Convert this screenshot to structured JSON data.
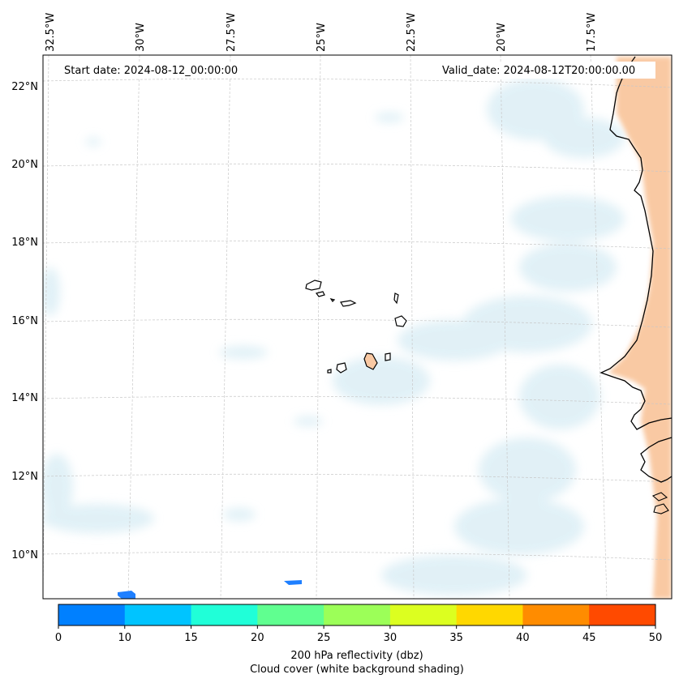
{
  "header": {
    "start_date": "Start date: 2024-08-12_00:00:00",
    "valid_date": "Valid_date: 2024-08-12T20:00:00.00"
  },
  "longitude_labels": [
    "32.5°W",
    "30°W",
    "27.5°W",
    "25°W",
    "22.5°W",
    "20°W",
    "17.5°W"
  ],
  "latitude_labels": [
    "22°N",
    "20°N",
    "18°N",
    "16°N",
    "14°N",
    "12°N",
    "10°N"
  ],
  "colorbar": {
    "ticks": [
      "0",
      "10",
      "15",
      "20",
      "25",
      "30",
      "35",
      "40",
      "45",
      "50"
    ],
    "colors": [
      "#0080ff",
      "#00c4ff",
      "#20ffd8",
      "#60ff90",
      "#9cff58",
      "#dcff20",
      "#ffd800",
      "#ff8c00",
      "#ff4a00"
    ],
    "label_line1": "200 hPa reflectivity (dbz)",
    "label_line2": "Cloud cover (white background shading)"
  },
  "colors": {
    "cloud": "#d7ecf4",
    "land_shade": "#f9c9a3",
    "coast": "#000000",
    "grid": "#c8c8c8",
    "reflectivity_patch": "#1e7fff"
  }
}
